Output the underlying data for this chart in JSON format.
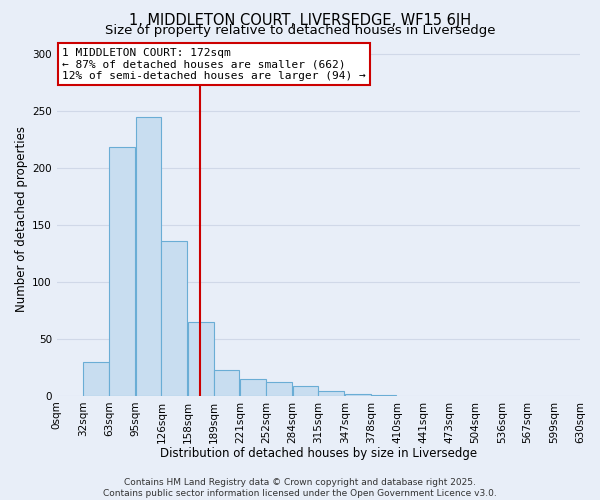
{
  "title": "1, MIDDLETON COURT, LIVERSEDGE, WF15 6JH",
  "subtitle": "Size of property relative to detached houses in Liversedge",
  "xlabel": "Distribution of detached houses by size in Liversedge",
  "ylabel": "Number of detached properties",
  "bar_left_edges": [
    0,
    32,
    63,
    95,
    126,
    158,
    189,
    221,
    252,
    284,
    315,
    347,
    378,
    410,
    441,
    473,
    504,
    536,
    567,
    599
  ],
  "bar_heights": [
    0,
    30,
    218,
    245,
    136,
    65,
    23,
    15,
    12,
    9,
    4,
    2,
    1,
    0,
    0,
    0,
    0,
    0,
    0,
    0
  ],
  "bin_width": 31,
  "bar_color": "#c8ddf0",
  "bar_edge_color": "#6aadd5",
  "vline_x": 172,
  "vline_color": "#cc0000",
  "ylim": [
    0,
    310
  ],
  "yticks": [
    0,
    50,
    100,
    150,
    200,
    250,
    300
  ],
  "x_tick_labels": [
    "0sqm",
    "32sqm",
    "63sqm",
    "95sqm",
    "126sqm",
    "158sqm",
    "189sqm",
    "221sqm",
    "252sqm",
    "284sqm",
    "315sqm",
    "347sqm",
    "378sqm",
    "410sqm",
    "441sqm",
    "473sqm",
    "504sqm",
    "536sqm",
    "567sqm",
    "599sqm",
    "630sqm"
  ],
  "annotation_title": "1 MIDDLETON COURT: 172sqm",
  "annotation_line1": "← 87% of detached houses are smaller (662)",
  "annotation_line2": "12% of semi-detached houses are larger (94) →",
  "footer_line1": "Contains HM Land Registry data © Crown copyright and database right 2025.",
  "footer_line2": "Contains public sector information licensed under the Open Government Licence v3.0.",
  "background_color": "#e8eef8",
  "grid_color": "#d0d8e8",
  "title_fontsize": 10.5,
  "subtitle_fontsize": 9.5,
  "axis_label_fontsize": 8.5,
  "tick_fontsize": 7.5,
  "annotation_fontsize": 8,
  "footer_fontsize": 6.5
}
